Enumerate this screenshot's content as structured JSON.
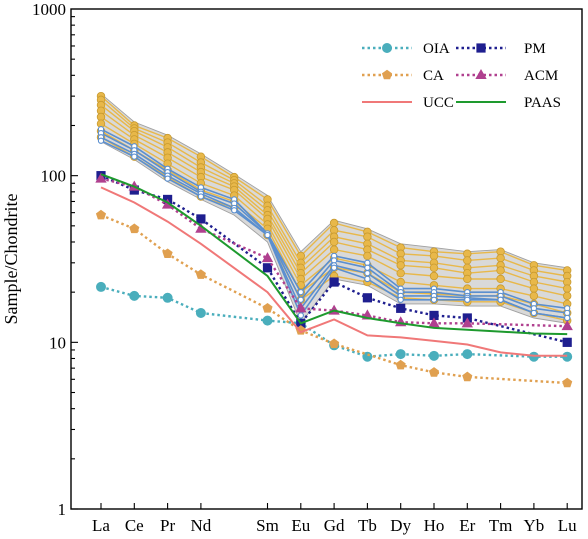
{
  "chart_data": {
    "type": "line",
    "ylabel": "Sample/Chondrite",
    "xlabel": "",
    "yscale": "log",
    "ylim": [
      1,
      1000
    ],
    "yticks": [
      "1",
      "10",
      "100",
      "1000"
    ],
    "categories": [
      "La",
      "Ce",
      "Pr",
      "Nd",
      "Sm",
      "Eu",
      "Gd",
      "Tb",
      "Dy",
      "Ho",
      "Er",
      "Tm",
      "Yb",
      "Lu"
    ],
    "category_positions": [
      0,
      1,
      2,
      3,
      5,
      6,
      7,
      8,
      9,
      10,
      11,
      12,
      13,
      14
    ],
    "legend_position": "top-right",
    "legend_entries": [
      {
        "name": "OIA",
        "color": "#4aaebc",
        "marker": "circle",
        "dash": "dot"
      },
      {
        "name": "PM",
        "color": "#1f1f8f",
        "marker": "square",
        "dash": "dot"
      },
      {
        "name": "CA",
        "color": "#e0a050",
        "marker": "pentagon",
        "dash": "dot"
      },
      {
        "name": "ACM",
        "color": "#b0408f",
        "marker": "triangle",
        "dash": "dot"
      },
      {
        "name": "UCC",
        "color": "#f07878",
        "marker": "none",
        "dash": "solid"
      },
      {
        "name": "PAAS",
        "color": "#1e9a2e",
        "marker": "none",
        "dash": "solid"
      }
    ],
    "reference_series": [
      {
        "name": "OIA",
        "x": [
          0,
          1,
          2,
          3,
          5,
          6,
          7,
          8,
          9,
          10,
          11,
          13,
          14
        ],
        "values": [
          21.5,
          19,
          18.5,
          15,
          13.5,
          13,
          9.6,
          8.2,
          8.5,
          8.3,
          8.5,
          8.2,
          8.2
        ]
      },
      {
        "name": "PM",
        "x": [
          0,
          1,
          2,
          3,
          5,
          6,
          7,
          8,
          9,
          10,
          11,
          14
        ],
        "values": [
          100,
          82,
          72,
          55,
          28,
          13,
          23,
          18.5,
          16,
          14.5,
          14,
          10
        ]
      },
      {
        "name": "CA",
        "x": [
          0,
          1,
          2,
          3,
          5,
          6,
          7,
          9,
          10,
          11,
          14
        ],
        "values": [
          58,
          48,
          34,
          25.5,
          16,
          11.8,
          9.8,
          7.3,
          6.6,
          6.2,
          5.7
        ]
      },
      {
        "name": "ACM",
        "x": [
          0,
          1,
          2,
          3,
          5,
          6,
          7,
          8,
          9,
          10,
          11,
          14
        ],
        "values": [
          96,
          86,
          67,
          48,
          32,
          16,
          15.5,
          14.5,
          13.2,
          13,
          13,
          12.5
        ]
      },
      {
        "name": "UCC",
        "x": [
          0,
          1,
          2,
          3,
          5,
          6,
          7,
          8,
          9,
          10,
          11,
          12,
          13,
          14
        ],
        "values": [
          85,
          69,
          53,
          39,
          20,
          11.5,
          13.7,
          11,
          10.7,
          10.2,
          9.7,
          8.7,
          8.3,
          8.3
        ]
      },
      {
        "name": "PAAS",
        "x": [
          0,
          1,
          2,
          3,
          5,
          6,
          7,
          8,
          9,
          10,
          11,
          12,
          13,
          14
        ],
        "values": [
          102,
          86,
          69,
          50,
          25,
          13,
          15.5,
          14,
          13,
          12.2,
          11.9,
          11.6,
          11.3,
          11.2
        ]
      }
    ],
    "sample_series": [
      {
        "group": "orange",
        "values": [
          300,
          200,
          168,
          130,
          98,
          72,
          33,
          52,
          46,
          37,
          35,
          34,
          35,
          29,
          27
        ]
      },
      {
        "group": "orange",
        "values": [
          285,
          192,
          158,
          120,
          94,
          66,
          30,
          47,
          43,
          34,
          33,
          31,
          32,
          27,
          25
        ]
      },
      {
        "group": "orange",
        "values": [
          265,
          185,
          148,
          112,
          90,
          62,
          28,
          43,
          39,
          31,
          30,
          28,
          29,
          25,
          23
        ]
      },
      {
        "group": "orange",
        "values": [
          245,
          175,
          138,
          105,
          86,
          58,
          26,
          40,
          36,
          29,
          28,
          26,
          27,
          23,
          21
        ]
      },
      {
        "group": "orange",
        "values": [
          225,
          165,
          128,
          98,
          82,
          55,
          24,
          36,
          33,
          26,
          25,
          24,
          24,
          21,
          19
        ]
      },
      {
        "group": "orange",
        "values": [
          205,
          155,
          118,
          90,
          76,
          51,
          22,
          32,
          29,
          23,
          22,
          21,
          21,
          19,
          17
        ]
      },
      {
        "group": "orange",
        "values": [
          185,
          142,
          108,
          82,
          70,
          48,
          20,
          28,
          26,
          20,
          19.5,
          19,
          19,
          17,
          15
        ]
      },
      {
        "group": "orange",
        "values": [
          170,
          130,
          98,
          75,
          64,
          44,
          18,
          25,
          23,
          18.5,
          18,
          17.5,
          17.5,
          15,
          13.5
        ]
      },
      {
        "group": "blue",
        "values": [
          190,
          150,
          110,
          85,
          72,
          45,
          20,
          33,
          30,
          21,
          21,
          20,
          20,
          17,
          16
        ]
      },
      {
        "group": "blue",
        "values": [
          180,
          142,
          105,
          80,
          68,
          45,
          18,
          31,
          28,
          20,
          20,
          19,
          19,
          16,
          15
        ]
      },
      {
        "group": "blue",
        "values": [
          170,
          135,
          100,
          78,
          64,
          44,
          16,
          29,
          26,
          19,
          19,
          18.5,
          18,
          15,
          14
        ]
      },
      {
        "group": "blue",
        "values": [
          162,
          130,
          96,
          75,
          62,
          44,
          14.5,
          28,
          24,
          18,
          18,
          18,
          18,
          15,
          14
        ]
      }
    ],
    "envelope": {
      "upper": [
        310,
        210,
        175,
        135,
        102,
        76,
        35,
        54,
        48,
        39,
        37,
        35,
        36,
        30,
        28
      ],
      "lower": [
        160,
        125,
        92,
        72,
        58,
        40,
        13,
        24,
        22,
        17,
        17,
        16.5,
        16.5,
        14,
        13
      ]
    },
    "sample_colors": {
      "orange": "#e8b84a",
      "orange_edge": "#c89a30",
      "blue": "#5b8fcf",
      "envelope_fill": "#d9d9d9",
      "envelope_edge": "#a0a0a0"
    }
  }
}
